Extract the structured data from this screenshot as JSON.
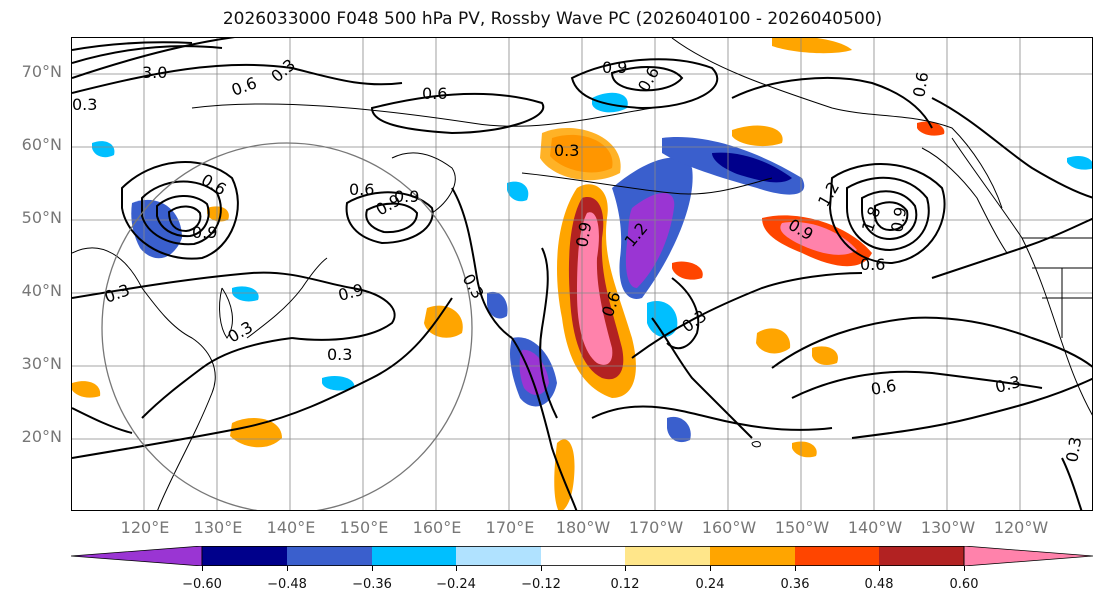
{
  "title": "2026033000 F048 500 hPa PV, Rossby Wave PC (2026040100 - 2026040500)",
  "lat_labels": [
    "70°N",
    "60°N",
    "50°N",
    "40°N",
    "30°N",
    "20°N"
  ],
  "lon_labels": [
    "120°E",
    "130°E",
    "140°E",
    "150°E",
    "160°E",
    "170°E",
    "180°W",
    "170°W",
    "160°W",
    "150°W",
    "140°W",
    "130°W",
    "120°W"
  ],
  "colorbar": {
    "ticks": [
      "−0.60",
      "−0.48",
      "−0.36",
      "−0.24",
      "−0.12",
      "0.12",
      "0.24",
      "0.36",
      "0.48",
      "0.60"
    ],
    "colors": [
      "#9a35d3",
      "#00008b",
      "#3a5fcd",
      "#00bfff",
      "#b0e2ff",
      "#ffffff",
      "#ffe68a",
      "#ffa500",
      "#ff4500",
      "#b22222",
      "#ff82ab"
    ]
  },
  "contour_labels": [
    "3.0",
    "0.6",
    "0.3",
    "0.6",
    "0.3",
    "0.6",
    "0.9",
    "0.6",
    "0.9",
    "0.3",
    "0.9",
    "0.3",
    "0.3",
    "0.3",
    "0.9",
    "0.9",
    "0.6",
    "1.2",
    "0.9",
    "0.6",
    "0.3",
    "0.6",
    "0.3",
    "0.3",
    "0.9",
    "1.2",
    "1.8",
    "0.6",
    "0.3",
    "0.6",
    "0.9"
  ],
  "colors": {
    "axis_text": "#777777",
    "title_text": "#111111",
    "contour": "#000000",
    "grid": "#888888"
  }
}
